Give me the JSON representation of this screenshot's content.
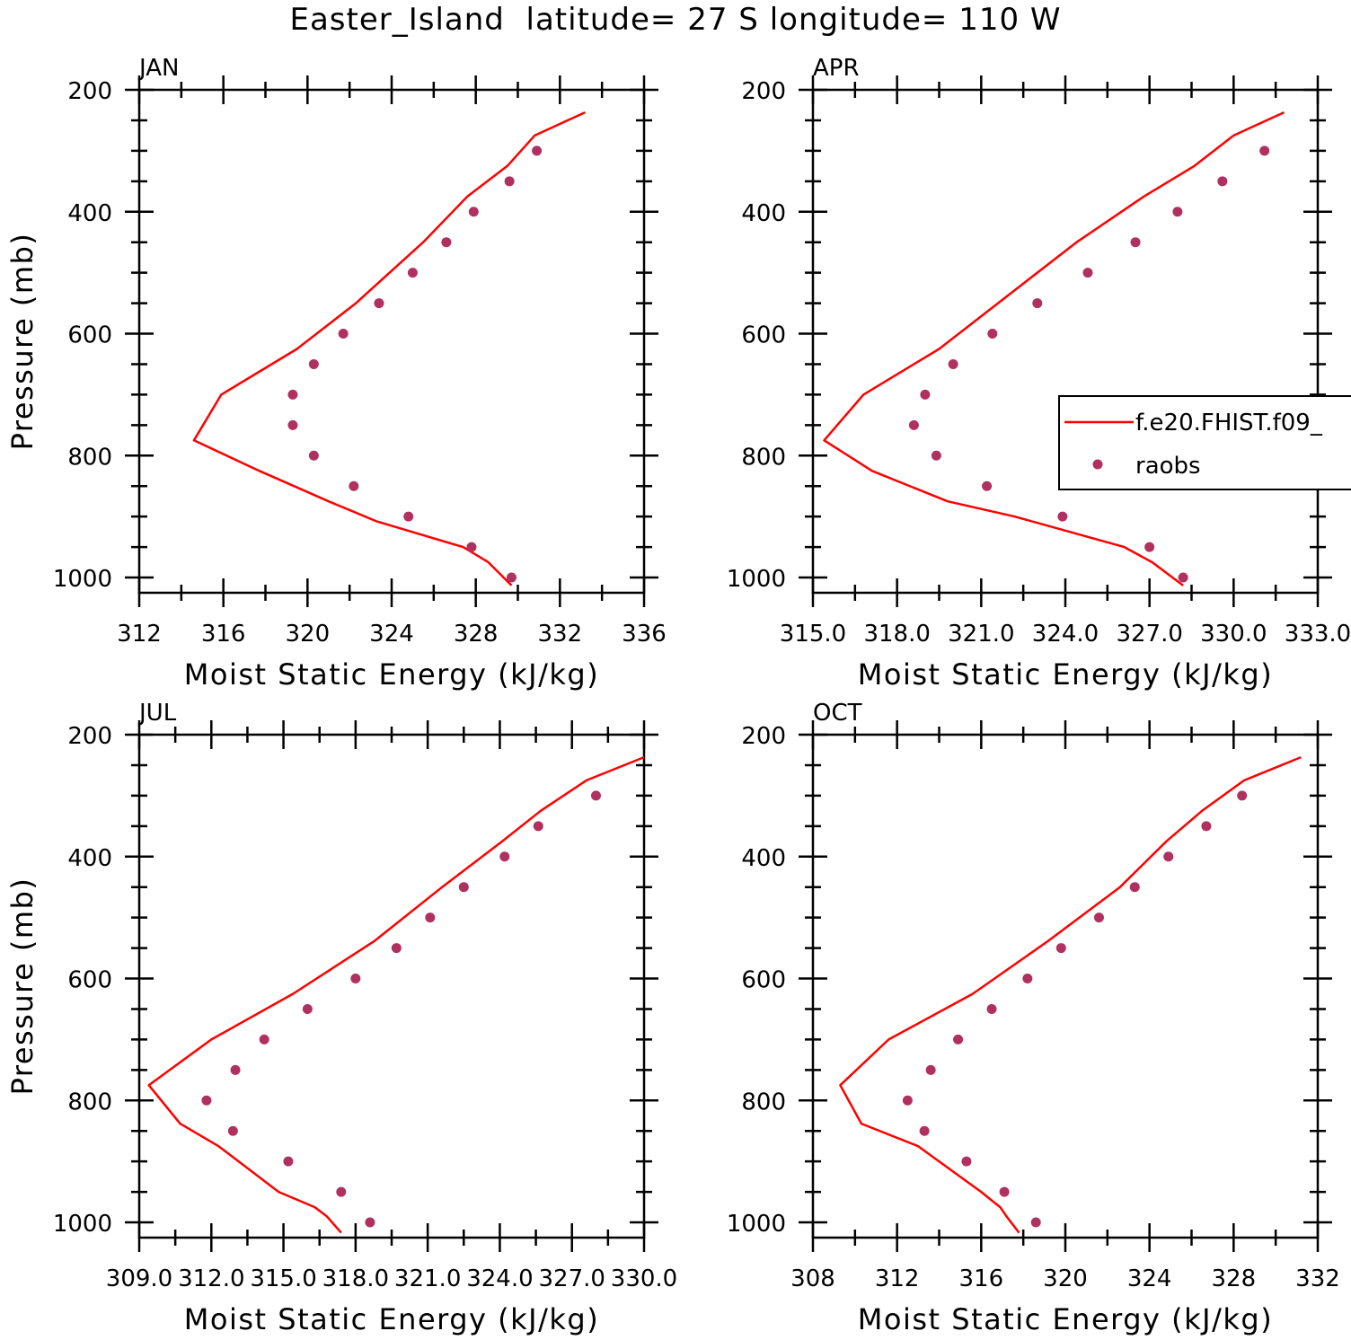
{
  "figure": {
    "title": "Easter_Island  latitude= 27 S longitude= 110 W"
  },
  "colors": {
    "model": "#ff0000",
    "obs": "#b03060",
    "axes": "#000000"
  },
  "legend": {
    "placement": "right of APR panel (clipped at figure edge)",
    "entries": [
      {
        "label": "f.e20.FHIST.f09_",
        "style": "red-line"
      },
      {
        "label": "raobs",
        "style": "purple-dot"
      }
    ]
  },
  "chart_data": [
    {
      "type": "line",
      "title": "JAN",
      "xlabel": "Moist Static Energy (kJ/kg)",
      "ylabel": "Pressure (mb)",
      "xlim": [
        312,
        336
      ],
      "ylim": [
        1025,
        200
      ],
      "y_inverted": true,
      "x_ticks": [
        "312",
        "316",
        "320",
        "324",
        "328",
        "332",
        "336"
      ],
      "y_ticks": [
        "200",
        "400",
        "600",
        "800",
        "1000"
      ],
      "series": [
        {
          "name": "f.e20.FHIST.f09_",
          "style": "line",
          "x": [
            329.7,
            328.6,
            327.4,
            323.3,
            321.0,
            317.7,
            314.6,
            315.9,
            319.5,
            322.3,
            325.5,
            327.6,
            329.5,
            330.8,
            333.2
          ],
          "y": [
            1013,
            975,
            950,
            908,
            875,
            825,
            775,
            700,
            625,
            550,
            450,
            375,
            325,
            275,
            237
          ]
        },
        {
          "name": "raobs",
          "style": "points",
          "x": [
            329.7,
            327.8,
            324.8,
            322.2,
            320.3,
            319.3,
            319.3,
            320.3,
            321.7,
            323.4,
            325.0,
            326.6,
            327.9,
            329.6,
            330.9
          ],
          "y": [
            1000,
            950,
            900,
            850,
            800,
            750,
            700,
            650,
            600,
            550,
            500,
            450,
            400,
            350,
            300
          ]
        }
      ]
    },
    {
      "type": "line",
      "title": "APR",
      "xlabel": "Moist Static Energy (kJ/kg)",
      "ylabel": "",
      "xlim": [
        315.0,
        333.0
      ],
      "ylim": [
        1025,
        200
      ],
      "y_inverted": true,
      "x_ticks": [
        "315.0",
        "318.0",
        "321.0",
        "324.0",
        "327.0",
        "330.0",
        "333.0"
      ],
      "y_ticks": [
        "200",
        "400",
        "600",
        "800",
        "1000"
      ],
      "series": [
        {
          "name": "f.e20.FHIST.f09_",
          "style": "line",
          "x": [
            328.2,
            327.1,
            326.1,
            322.2,
            319.8,
            317.1,
            315.4,
            316.8,
            319.5,
            322.3,
            324.4,
            326.8,
            328.6,
            330.0,
            331.8
          ],
          "y": [
            1013,
            975,
            950,
            900,
            875,
            825,
            775,
            700,
            625,
            525,
            450,
            375,
            325,
            275,
            237
          ]
        },
        {
          "name": "raobs",
          "style": "points",
          "x": [
            328.2,
            327.0,
            323.9,
            321.2,
            319.4,
            318.6,
            319.0,
            320.0,
            321.4,
            323.0,
            324.8,
            326.5,
            328.0,
            329.6,
            331.1
          ],
          "y": [
            1000,
            950,
            900,
            850,
            800,
            750,
            700,
            650,
            600,
            550,
            500,
            450,
            400,
            350,
            300
          ]
        }
      ]
    },
    {
      "type": "line",
      "title": "JUL",
      "xlabel": "Moist Static Energy (kJ/kg)",
      "ylabel": "Pressure (mb)",
      "xlim": [
        309.0,
        330.0
      ],
      "ylim": [
        1025,
        200
      ],
      "y_inverted": true,
      "x_ticks": [
        "309.0",
        "312.0",
        "315.0",
        "318.0",
        "321.0",
        "324.0",
        "327.0",
        "330.0"
      ],
      "y_ticks": [
        "200",
        "400",
        "600",
        "800",
        "1000"
      ],
      "series": [
        {
          "name": "f.e20.FHIST.f09_",
          "style": "line",
          "x": [
            317.4,
            316.8,
            316.3,
            314.8,
            312.3,
            310.7,
            309.4,
            312.0,
            315.4,
            318.8,
            321.6,
            324.1,
            325.7,
            327.6,
            330.0
          ],
          "y": [
            1017,
            990,
            975,
            950,
            875,
            838,
            775,
            700,
            625,
            538,
            450,
            375,
            325,
            275,
            237
          ]
        },
        {
          "name": "raobs",
          "style": "points",
          "x": [
            318.6,
            317.4,
            315.2,
            312.9,
            311.8,
            313.0,
            314.2,
            316.0,
            318.0,
            319.7,
            321.1,
            322.5,
            324.2,
            325.6,
            328.0
          ],
          "y": [
            1000,
            950,
            900,
            850,
            800,
            750,
            700,
            650,
            600,
            550,
            500,
            450,
            400,
            350,
            300
          ]
        }
      ]
    },
    {
      "type": "line",
      "title": "OCT",
      "xlabel": "Moist Static Energy (kJ/kg)",
      "ylabel": "",
      "xlim": [
        308,
        332
      ],
      "ylim": [
        1025,
        200
      ],
      "y_inverted": true,
      "x_ticks": [
        "308",
        "312",
        "316",
        "320",
        "324",
        "328",
        "332"
      ],
      "y_ticks": [
        "200",
        "400",
        "600",
        "800",
        "1000"
      ],
      "series": [
        {
          "name": "f.e20.FHIST.f09_",
          "style": "line",
          "x": [
            317.8,
            317.2,
            316.9,
            316.0,
            313.0,
            310.3,
            309.3,
            311.6,
            315.6,
            319.2,
            322.6,
            324.8,
            326.5,
            328.5,
            331.2
          ],
          "y": [
            1017,
            990,
            975,
            950,
            875,
            838,
            775,
            700,
            625,
            538,
            450,
            375,
            325,
            275,
            237
          ]
        },
        {
          "name": "raobs",
          "style": "points",
          "x": [
            318.6,
            317.1,
            315.3,
            313.3,
            312.5,
            313.6,
            314.9,
            316.5,
            318.2,
            319.8,
            321.6,
            323.3,
            324.9,
            326.7,
            328.4
          ],
          "y": [
            1000,
            950,
            900,
            850,
            800,
            750,
            700,
            650,
            600,
            550,
            500,
            450,
            400,
            350,
            300
          ]
        }
      ]
    }
  ]
}
